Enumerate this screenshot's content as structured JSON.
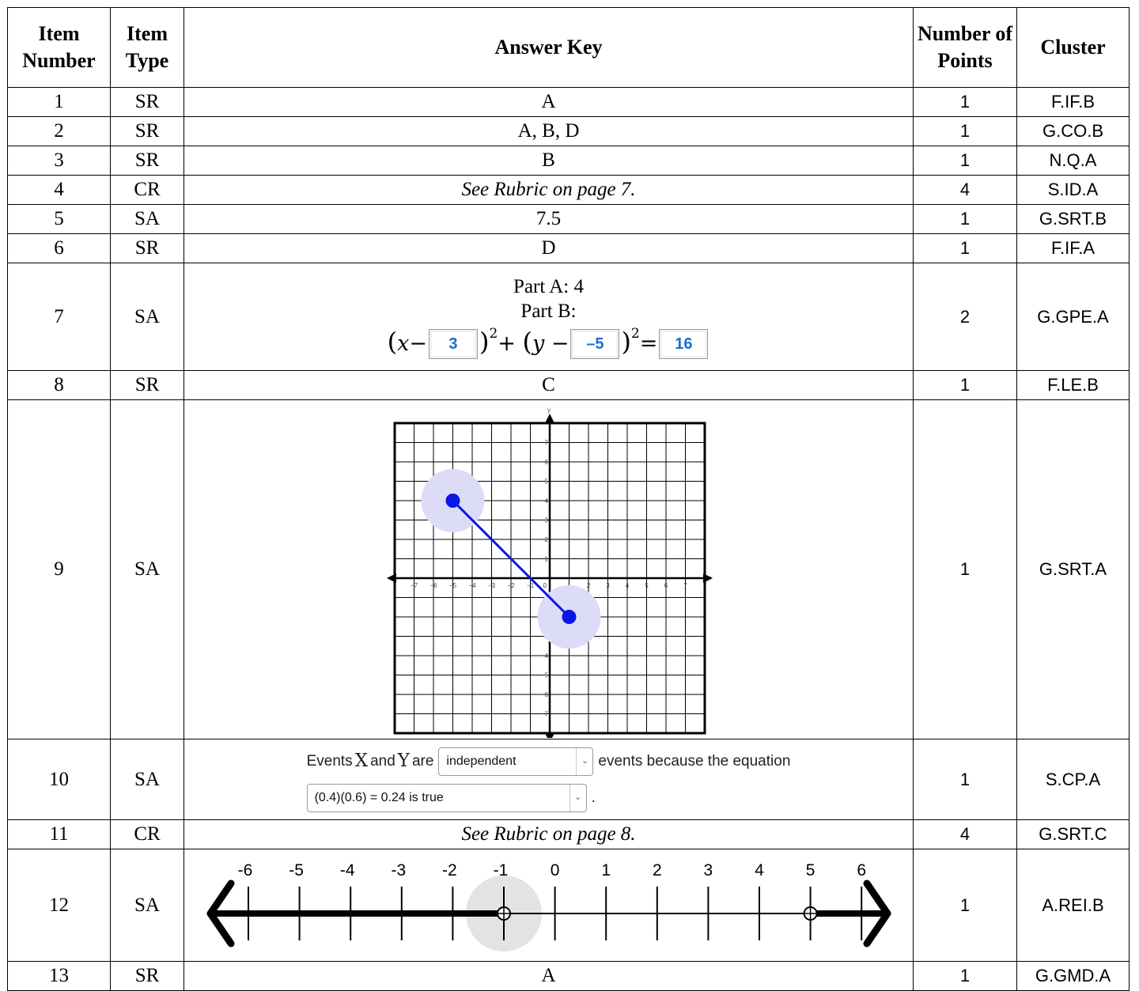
{
  "headers": {
    "item_number": "Item Number",
    "item_type": "Item Type",
    "answer_key": "Answer Key",
    "points": "Number of Points",
    "cluster": "Cluster"
  },
  "rows": [
    {
      "num": "1",
      "type": "SR",
      "answer": "A",
      "points": "1",
      "cluster": "F.IF.B"
    },
    {
      "num": "2",
      "type": "SR",
      "answer": "A, B, D",
      "points": "1",
      "cluster": "G.CO.B"
    },
    {
      "num": "3",
      "type": "SR",
      "answer": "B",
      "points": "1",
      "cluster": "N.Q.A"
    },
    {
      "num": "4",
      "type": "CR",
      "answer": "See Rubric on page 7.",
      "points": "4",
      "cluster": "S.ID.A"
    },
    {
      "num": "5",
      "type": "SA",
      "answer": "7.5",
      "points": "1",
      "cluster": "G.SRT.B"
    },
    {
      "num": "6",
      "type": "SR",
      "answer": "D",
      "points": "1",
      "cluster": "F.IF.A"
    },
    {
      "num": "7",
      "type": "SA",
      "answer_part_a": "Part A: 4",
      "answer_part_b": "Part B:",
      "eq_box1": "3",
      "eq_box2": "–5",
      "eq_box3": "16",
      "points": "2",
      "cluster": "G.GPE.A"
    },
    {
      "num": "8",
      "type": "SR",
      "answer": "C",
      "points": "1",
      "cluster": "F.LE.B"
    },
    {
      "num": "9",
      "type": "SA",
      "points": "1",
      "cluster": "G.SRT.A"
    },
    {
      "num": "10",
      "type": "SA",
      "points": "1",
      "cluster": "S.CP.A"
    },
    {
      "num": "11",
      "type": "CR",
      "answer": "See Rubric on page 8.",
      "points": "4",
      "cluster": "G.SRT.C"
    },
    {
      "num": "12",
      "type": "SA",
      "points": "1",
      "cluster": "A.REI.B"
    },
    {
      "num": "13",
      "type": "SR",
      "answer": "A",
      "points": "1",
      "cluster": "G.GMD.A"
    }
  ],
  "item9_graph": {
    "x_axis_label": "x",
    "y_axis_label": "y",
    "range": [
      -7,
      7
    ],
    "segment_points": [
      [
        -5,
        4
      ],
      [
        1,
        -2
      ]
    ]
  },
  "item10": {
    "text_events": "Events",
    "var_x": "X",
    "text_and": "and",
    "var_y": "Y",
    "text_are": "are",
    "select1_value": "independent",
    "text_because": "events because the equation",
    "select2_value": "(0.4)(0.6) = 0.24 is true",
    "text_period": "."
  },
  "item12_numberline": {
    "ticks": [
      -6,
      -5,
      -4,
      -3,
      -2,
      -1,
      0,
      1,
      2,
      3,
      4,
      5,
      6
    ],
    "open_points": [
      -1,
      5
    ],
    "shaded": "x < -1 or x > 5"
  },
  "colors": {
    "point_blue": "#0a16e8",
    "highlight": "#dcdcf6",
    "input_text": "#1a6fc7"
  }
}
